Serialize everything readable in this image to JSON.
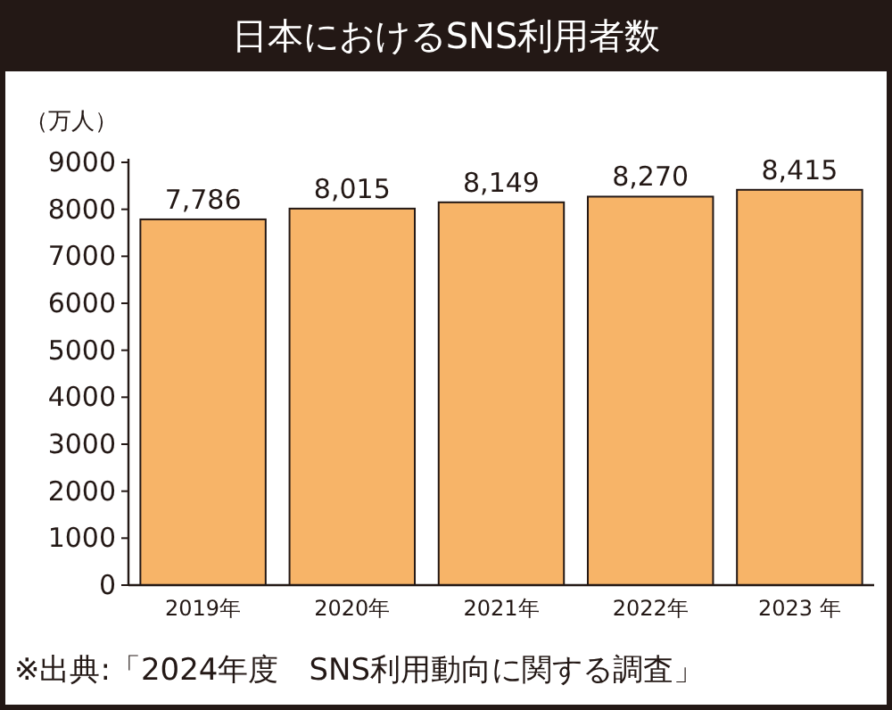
{
  "chart_data": {
    "type": "bar",
    "title": "日本におけるSNS利用者数",
    "ylabel": "（万人）",
    "categories": [
      "2019年",
      "2020年",
      "2021年",
      "2022年",
      "2023 年"
    ],
    "values": [
      7786,
      8015,
      8149,
      8270,
      8415
    ],
    "value_labels": [
      "7,786",
      "8,015",
      "8,149",
      "8,270",
      "8,415"
    ],
    "color": "#f7b468",
    "ylim": [
      0,
      9000
    ],
    "yticks": [
      0,
      1000,
      2000,
      3000,
      4000,
      5000,
      6000,
      7000,
      8000,
      9000
    ],
    "grid": false,
    "annotations": [
      "※出典:「2024年度　SNS利用動向に関する調査」"
    ]
  }
}
